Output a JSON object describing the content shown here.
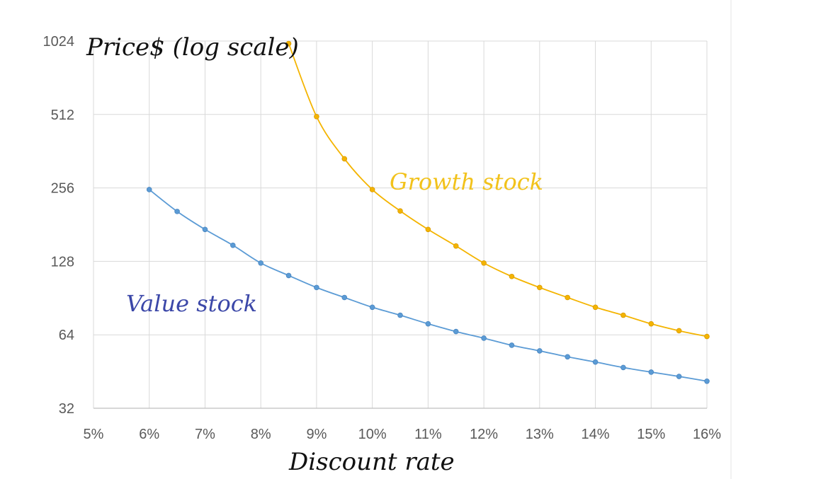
{
  "chart_data": {
    "type": "line",
    "title": "",
    "ylabel": "Price$ (log scale)",
    "xlabel": "Discount rate",
    "y_scale": "log2",
    "ylim": [
      32,
      1024
    ],
    "xlim": [
      0.05,
      0.16
    ],
    "y_ticks": [
      {
        "value": 32,
        "label": "32"
      },
      {
        "value": 64,
        "label": "64"
      },
      {
        "value": 128,
        "label": "128"
      },
      {
        "value": 256,
        "label": "256"
      },
      {
        "value": 512,
        "label": "512"
      },
      {
        "value": 1024,
        "label": "1024"
      }
    ],
    "x_ticks": [
      {
        "value": 0.05,
        "label": "5%"
      },
      {
        "value": 0.06,
        "label": "6%"
      },
      {
        "value": 0.07,
        "label": "7%"
      },
      {
        "value": 0.08,
        "label": "8%"
      },
      {
        "value": 0.09,
        "label": "9%"
      },
      {
        "value": 0.1,
        "label": "10%"
      },
      {
        "value": 0.11,
        "label": "11%"
      },
      {
        "value": 0.12,
        "label": "12%"
      },
      {
        "value": 0.13,
        "label": "13%"
      },
      {
        "value": 0.14,
        "label": "14%"
      },
      {
        "value": 0.15,
        "label": "15%"
      },
      {
        "value": 0.16,
        "label": "16%"
      }
    ],
    "grid": true,
    "legend": "none",
    "series": [
      {
        "color": "#5b9bd5",
        "x": [
          0.06,
          0.065,
          0.07,
          0.075,
          0.08,
          0.085,
          0.09,
          0.095,
          0.1,
          0.105,
          0.11,
          0.115,
          0.12,
          0.125,
          0.13,
          0.135,
          0.14,
          0.145,
          0.15,
          0.155,
          0.16
        ],
        "y": [
          252,
          205,
          173,
          149,
          126,
          112,
          100,
          91,
          83,
          77,
          71,
          66,
          62,
          58,
          55,
          52,
          49.5,
          47,
          45,
          43.2,
          41.3
        ]
      },
      {
        "color": "#f4b400",
        "x": [
          0.085,
          0.09,
          0.095,
          0.1,
          0.105,
          0.11,
          0.115,
          0.12,
          0.125,
          0.13,
          0.135,
          0.14,
          0.145,
          0.15,
          0.155,
          0.16
        ],
        "y": [
          1000,
          502,
          337,
          252,
          206,
          173,
          148,
          126,
          111,
          100,
          91,
          83,
          77,
          71,
          66.5,
          63
        ]
      }
    ],
    "annotations": [
      {
        "text": "Growth stock",
        "color": "#f2c21b"
      },
      {
        "text": "Value stock",
        "color": "#3b47a8"
      }
    ]
  }
}
